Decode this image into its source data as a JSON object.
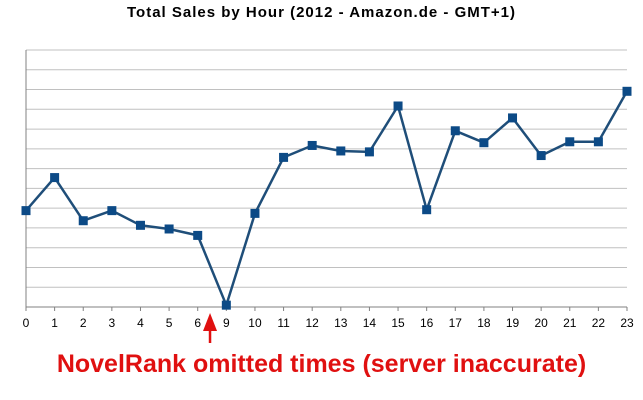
{
  "chart_data": {
    "type": "line",
    "title": "Total Sales by Hour (2012 - Amazon.de - GMT+1)",
    "categories": [
      "0",
      "1",
      "2",
      "3",
      "4",
      "5",
      "6",
      "9",
      "10",
      "11",
      "12",
      "13",
      "14",
      "15",
      "16",
      "17",
      "18",
      "19",
      "20",
      "21",
      "22",
      "23"
    ],
    "series": [
      {
        "values": [
          9.5,
          13.1,
          8.4,
          9.5,
          7.9,
          7.5,
          6.8,
          -0.8,
          9.2,
          15.3,
          16.6,
          16.0,
          15.9,
          20.9,
          9.6,
          18.2,
          16.9,
          19.6,
          15.5,
          17.0,
          17.0,
          22.5
        ]
      }
    ],
    "xlabel": "",
    "ylabel": "",
    "ylim": [
      -1,
      27
    ],
    "grid": true,
    "legend": "none",
    "y_tick_labels_visible": false,
    "line_color": "#1f4e79",
    "marker_color": "#0c4a86",
    "grid_color": "#c0c0c0",
    "annotation": {
      "text": "NovelRank omitted times (server inaccurate)",
      "points_to": "6",
      "color": "#e01010"
    }
  }
}
